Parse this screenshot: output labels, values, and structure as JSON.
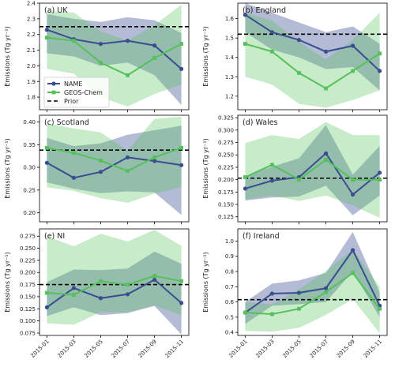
{
  "colors": {
    "name": "#3a4d8f",
    "geos": "#55c15a",
    "prior": "#000000"
  },
  "legend": {
    "name": "NAME",
    "geos": "GEOS-Chem",
    "prior": "Prior"
  },
  "ylabel": "Emissions (Tg yr⁻¹)",
  "chart_data": [
    {
      "type": "line",
      "label": "(a) UK",
      "ylim": [
        1.72,
        2.4
      ],
      "yticks": [
        "1.8",
        "1.9",
        "2.0",
        "2.1",
        "2.2",
        "2.3",
        "2.4"
      ],
      "x": [
        1,
        3,
        5,
        7,
        9,
        11
      ],
      "prior": 2.25,
      "series": [
        {
          "name": "NAME",
          "values": [
            2.23,
            2.17,
            2.14,
            2.16,
            2.13,
            1.98
          ],
          "lower": [
            2.08,
            2.06,
            2.0,
            2.02,
            1.94,
            1.75
          ],
          "upper": [
            2.33,
            2.3,
            2.28,
            2.31,
            2.29,
            2.21
          ]
        },
        {
          "name": "GEOS-Chem",
          "values": [
            2.18,
            2.16,
            2.02,
            1.94,
            2.05,
            2.14
          ],
          "lower": [
            1.98,
            1.95,
            1.8,
            1.74,
            1.82,
            1.88
          ],
          "upper": [
            2.35,
            2.34,
            2.22,
            2.16,
            2.26,
            2.39
          ]
        }
      ]
    },
    {
      "type": "line",
      "label": "(b) England",
      "ylim": [
        1.13,
        1.68
      ],
      "yticks": [
        "1.2",
        "1.3",
        "1.4",
        "1.5",
        "1.6"
      ],
      "x": [
        1,
        3,
        5,
        7,
        9,
        11
      ],
      "prior": 1.52,
      "series": [
        {
          "name": "NAME",
          "values": [
            1.62,
            1.53,
            1.49,
            1.43,
            1.46,
            1.33
          ],
          "lower": [
            1.53,
            1.44,
            1.4,
            1.34,
            1.35,
            1.23
          ],
          "upper": [
            1.68,
            1.63,
            1.58,
            1.53,
            1.56,
            1.47
          ]
        },
        {
          "name": "GEOS-Chem",
          "values": [
            1.47,
            1.43,
            1.32,
            1.24,
            1.33,
            1.42
          ],
          "lower": [
            1.3,
            1.26,
            1.16,
            1.14,
            1.18,
            1.23
          ],
          "upper": [
            1.63,
            1.59,
            1.48,
            1.39,
            1.49,
            1.63
          ]
        }
      ]
    },
    {
      "type": "line",
      "label": "(c) Scotland",
      "ylim": [
        0.18,
        0.415
      ],
      "yticks": [
        "0.20",
        "0.25",
        "0.30",
        "0.35",
        "0.40"
      ],
      "x": [
        1,
        3,
        5,
        7,
        9,
        11
      ],
      "prior": 0.338,
      "series": [
        {
          "name": "NAME",
          "values": [
            0.31,
            0.277,
            0.29,
            0.322,
            0.314,
            0.305
          ],
          "lower": [
            0.267,
            0.253,
            0.243,
            0.247,
            0.245,
            0.195
          ],
          "upper": [
            0.365,
            0.347,
            0.353,
            0.372,
            0.382,
            0.392
          ]
        },
        {
          "name": "GEOS-Chem",
          "values": [
            0.343,
            0.332,
            0.315,
            0.292,
            0.322,
            0.343
          ],
          "lower": [
            0.256,
            0.248,
            0.232,
            0.222,
            0.242,
            0.256
          ],
          "upper": [
            0.397,
            0.386,
            0.377,
            0.337,
            0.407,
            0.412
          ]
        }
      ]
    },
    {
      "type": "line",
      "label": "(d) Wales",
      "ylim": [
        0.115,
        0.33
      ],
      "yticks": [
        "0.125",
        "0.150",
        "0.175",
        "0.200",
        "0.225",
        "0.250",
        "0.275",
        "0.300",
        "0.325"
      ],
      "x": [
        1,
        3,
        5,
        7,
        9,
        11
      ],
      "prior": 0.203,
      "series": [
        {
          "name": "NAME",
          "values": [
            0.182,
            0.198,
            0.205,
            0.253,
            0.17,
            0.214
          ],
          "lower": [
            0.158,
            0.164,
            0.166,
            0.188,
            0.128,
            0.168
          ],
          "upper": [
            0.207,
            0.226,
            0.243,
            0.31,
            0.21,
            0.268
          ]
        },
        {
          "name": "GEOS-Chem",
          "values": [
            0.205,
            0.23,
            0.2,
            0.24,
            0.2,
            0.2
          ],
          "lower": [
            0.16,
            0.168,
            0.157,
            0.168,
            0.148,
            0.123
          ],
          "upper": [
            0.274,
            0.29,
            0.282,
            0.316,
            0.29,
            0.29
          ]
        }
      ]
    },
    {
      "type": "line",
      "label": "(e) NI",
      "ylim": [
        0.07,
        0.29
      ],
      "yticks": [
        "0.075",
        "0.100",
        "0.125",
        "0.150",
        "0.175",
        "0.200",
        "0.225",
        "0.250",
        "0.275"
      ],
      "x": [
        1,
        3,
        5,
        7,
        9,
        11
      ],
      "prior": 0.175,
      "series": [
        {
          "name": "NAME",
          "values": [
            0.128,
            0.168,
            0.147,
            0.155,
            0.185,
            0.137
          ],
          "lower": [
            0.11,
            0.128,
            0.112,
            0.116,
            0.131,
            0.072
          ],
          "upper": [
            0.18,
            0.206,
            0.205,
            0.208,
            0.243,
            0.218
          ]
        },
        {
          "name": "GEOS-Chem",
          "values": [
            0.158,
            0.154,
            0.182,
            0.175,
            0.193,
            0.182
          ],
          "lower": [
            0.095,
            0.092,
            0.118,
            0.118,
            0.132,
            0.112
          ],
          "upper": [
            0.275,
            0.254,
            0.28,
            0.264,
            0.288,
            0.255
          ]
        }
      ]
    },
    {
      "type": "line",
      "label": "(f) Ireland",
      "ylim": [
        0.38,
        1.08
      ],
      "yticks": [
        "0.4",
        "0.5",
        "0.6",
        "0.7",
        "0.8",
        "0.9",
        "1.0"
      ],
      "x": [
        1,
        3,
        5,
        7,
        9,
        11
      ],
      "prior": 0.615,
      "series": [
        {
          "name": "NAME",
          "values": [
            0.53,
            0.655,
            0.66,
            0.69,
            0.94,
            0.575
          ],
          "lower": [
            0.455,
            0.575,
            0.585,
            0.6,
            0.8,
            0.5
          ],
          "upper": [
            0.6,
            0.72,
            0.742,
            0.79,
            1.06,
            0.66
          ]
        },
        {
          "name": "GEOS-Chem",
          "values": [
            0.53,
            0.52,
            0.555,
            0.665,
            0.79,
            0.555
          ],
          "lower": [
            0.41,
            0.405,
            0.43,
            0.515,
            0.62,
            0.395
          ],
          "upper": [
            0.598,
            0.585,
            0.682,
            0.803,
            0.945,
            0.7
          ]
        }
      ]
    }
  ],
  "xticks": [
    {
      "x": 1,
      "label": "2015-01"
    },
    {
      "x": 3,
      "label": "2015-03"
    },
    {
      "x": 5,
      "label": "2015-05"
    },
    {
      "x": 7,
      "label": "2015-07"
    },
    {
      "x": 9,
      "label": "2015-09"
    },
    {
      "x": 11,
      "label": "2015-11"
    }
  ]
}
